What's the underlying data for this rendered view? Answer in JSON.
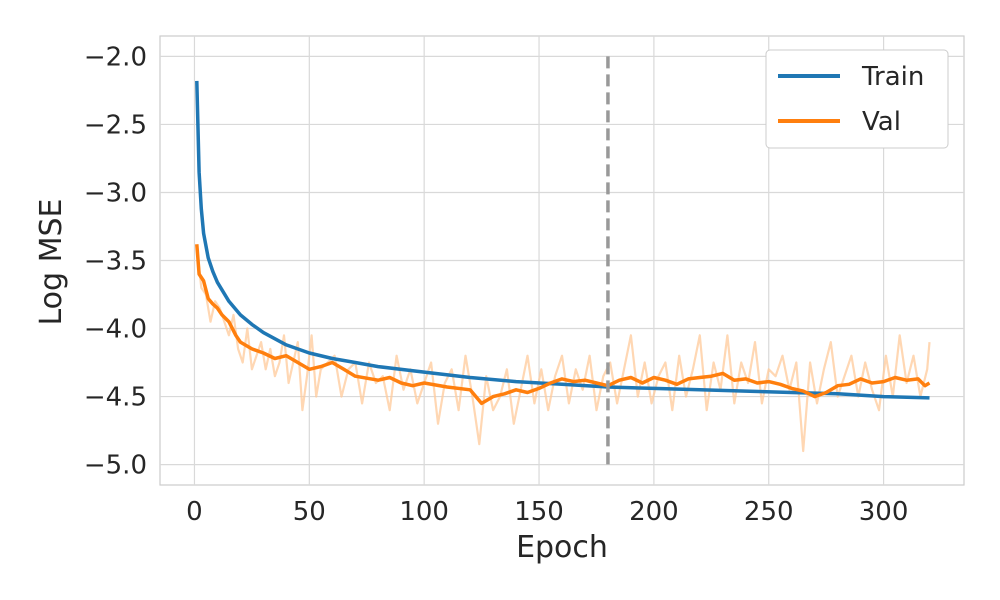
{
  "chart_data": {
    "type": "line",
    "xlabel": "Epoch",
    "ylabel": "Log MSE",
    "xlim": [
      -15,
      335
    ],
    "ylim": [
      -5.15,
      -1.85
    ],
    "xticks": [
      0,
      50,
      100,
      150,
      200,
      250,
      300
    ],
    "xtick_labels": [
      "0",
      "50",
      "100",
      "150",
      "200",
      "250",
      "300"
    ],
    "yticks": [
      -5.0,
      -4.5,
      -4.0,
      -3.5,
      -3.0,
      -2.5,
      -2.0
    ],
    "ytick_labels": [
      "−5.0",
      "−4.5",
      "−4.0",
      "−3.5",
      "−3.0",
      "−2.5",
      "−2.0"
    ],
    "grid": true,
    "legend_position": "top-right",
    "vline": {
      "x": 180,
      "style": "dashed",
      "color": "#999999"
    },
    "series": [
      {
        "name": "Train",
        "color": "#1f77b4",
        "x": [
          1,
          2,
          3,
          4,
          6,
          8,
          10,
          15,
          20,
          25,
          30,
          40,
          50,
          60,
          70,
          80,
          100,
          120,
          140,
          160,
          180,
          200,
          220,
          240,
          260,
          280,
          300,
          320
        ],
        "y": [
          -2.18,
          -2.85,
          -3.12,
          -3.3,
          -3.48,
          -3.58,
          -3.66,
          -3.8,
          -3.9,
          -3.97,
          -4.03,
          -4.12,
          -4.18,
          -4.22,
          -4.25,
          -4.28,
          -4.32,
          -4.36,
          -4.39,
          -4.41,
          -4.43,
          -4.44,
          -4.45,
          -4.46,
          -4.47,
          -4.48,
          -4.5,
          -4.51
        ]
      },
      {
        "name": "Val",
        "color": "#ff7f0e",
        "x": [
          1,
          2,
          4,
          6,
          8,
          10,
          12,
          15,
          18,
          20,
          25,
          30,
          35,
          40,
          45,
          50,
          55,
          60,
          65,
          70,
          80,
          85,
          90,
          95,
          100,
          110,
          120,
          125,
          130,
          135,
          140,
          145,
          150,
          155,
          160,
          165,
          170,
          175,
          180,
          185,
          190,
          195,
          200,
          205,
          210,
          215,
          220,
          225,
          230,
          235,
          240,
          245,
          250,
          255,
          260,
          265,
          270,
          275,
          280,
          285,
          290,
          295,
          300,
          305,
          310,
          315,
          318,
          320
        ],
        "y": [
          -3.38,
          -3.6,
          -3.65,
          -3.78,
          -3.82,
          -3.85,
          -3.9,
          -3.95,
          -4.05,
          -4.1,
          -4.15,
          -4.18,
          -4.22,
          -4.2,
          -4.25,
          -4.3,
          -4.28,
          -4.25,
          -4.3,
          -4.35,
          -4.38,
          -4.36,
          -4.4,
          -4.42,
          -4.4,
          -4.43,
          -4.45,
          -4.55,
          -4.5,
          -4.48,
          -4.45,
          -4.47,
          -4.44,
          -4.4,
          -4.37,
          -4.39,
          -4.38,
          -4.4,
          -4.42,
          -4.38,
          -4.36,
          -4.4,
          -4.36,
          -4.38,
          -4.41,
          -4.37,
          -4.36,
          -4.35,
          -4.33,
          -4.38,
          -4.37,
          -4.4,
          -4.39,
          -4.41,
          -4.44,
          -4.46,
          -4.5,
          -4.47,
          -4.42,
          -4.41,
          -4.37,
          -4.4,
          -4.39,
          -4.36,
          -4.38,
          -4.37,
          -4.42,
          -4.4
        ]
      },
      {
        "name": "",
        "color": "#ffc99a",
        "x": [
          1,
          2,
          3,
          5,
          7,
          9,
          11,
          13,
          15,
          17,
          19,
          21,
          23,
          25,
          27,
          29,
          31,
          33,
          35,
          37,
          39,
          41,
          43,
          45,
          47,
          49,
          51,
          53,
          55,
          58,
          61,
          64,
          67,
          70,
          73,
          76,
          79,
          82,
          85,
          88,
          91,
          94,
          97,
          100,
          103,
          106,
          109,
          112,
          115,
          118,
          121,
          124,
          127,
          130,
          133,
          136,
          139,
          142,
          145,
          148,
          151,
          154,
          157,
          160,
          163,
          166,
          169,
          172,
          175,
          178,
          181,
          184,
          187,
          190,
          193,
          196,
          199,
          202,
          205,
          208,
          211,
          214,
          217,
          220,
          223,
          226,
          229,
          232,
          235,
          238,
          241,
          244,
          247,
          250,
          253,
          256,
          259,
          262,
          265,
          268,
          271,
          274,
          277,
          280,
          283,
          286,
          289,
          292,
          295,
          298,
          301,
          304,
          307,
          310,
          313,
          316,
          319,
          320
        ],
        "y": [
          -3.4,
          -3.55,
          -3.7,
          -3.75,
          -3.95,
          -3.8,
          -3.85,
          -3.95,
          -4.05,
          -3.9,
          -4.15,
          -4.25,
          -4.0,
          -4.3,
          -4.2,
          -4.1,
          -4.3,
          -4.15,
          -4.35,
          -4.25,
          -4.05,
          -4.4,
          -4.25,
          -4.1,
          -4.6,
          -4.35,
          -4.05,
          -4.5,
          -4.3,
          -4.25,
          -4.2,
          -4.5,
          -4.3,
          -4.25,
          -4.55,
          -4.25,
          -4.4,
          -4.35,
          -4.6,
          -4.2,
          -4.45,
          -4.3,
          -4.55,
          -4.4,
          -4.25,
          -4.7,
          -4.4,
          -4.3,
          -4.6,
          -4.2,
          -4.5,
          -4.85,
          -4.35,
          -4.6,
          -4.5,
          -4.3,
          -4.7,
          -4.45,
          -4.2,
          -4.55,
          -4.3,
          -4.6,
          -4.35,
          -4.2,
          -4.55,
          -4.3,
          -4.45,
          -4.2,
          -4.6,
          -4.35,
          -4.25,
          -4.55,
          -4.3,
          -4.05,
          -4.5,
          -4.25,
          -4.55,
          -4.35,
          -4.25,
          -4.6,
          -4.2,
          -4.5,
          -4.3,
          -4.05,
          -4.6,
          -4.25,
          -4.45,
          -4.05,
          -4.55,
          -4.25,
          -4.4,
          -4.1,
          -4.55,
          -4.3,
          -4.35,
          -4.2,
          -4.45,
          -4.25,
          -4.9,
          -4.25,
          -4.55,
          -4.3,
          -4.1,
          -4.5,
          -4.35,
          -4.2,
          -4.5,
          -4.25,
          -4.45,
          -4.6,
          -4.2,
          -4.5,
          -4.05,
          -4.4,
          -4.2,
          -4.5,
          -4.3,
          -4.1
        ]
      }
    ]
  }
}
